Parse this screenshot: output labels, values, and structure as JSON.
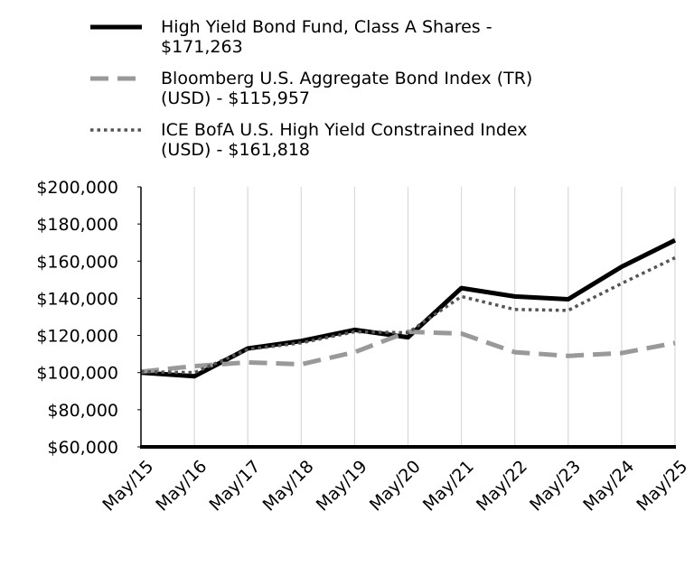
{
  "chart_data": {
    "type": "line",
    "x": [
      "May/15",
      "May/16",
      "May/17",
      "May/18",
      "May/19",
      "May/20",
      "May/21",
      "May/22",
      "May/23",
      "May/24",
      "May/25"
    ],
    "ylim": [
      60000,
      200000
    ],
    "yticks": [
      "$60,000",
      "$80,000",
      "$100,000",
      "$120,000",
      "$140,000",
      "$160,000",
      "$180,000",
      "$200,000"
    ],
    "ytick_values": [
      60000,
      80000,
      100000,
      120000,
      140000,
      160000,
      180000,
      200000
    ],
    "grid": "vertical",
    "legend_position": "top",
    "series": [
      {
        "name": "High Yield Bond Fund, Class A Shares - $171,263",
        "legend_lines": [
          "High Yield Bond Fund, Class A Shares -",
          "$171,263"
        ],
        "style": "solid",
        "color": "#000000",
        "values": [
          100000,
          98000,
          113000,
          117000,
          123000,
          119000,
          145500,
          141000,
          139500,
          157000,
          171263
        ]
      },
      {
        "name": "Bloomberg U.S. Aggregate Bond Index (TR) (USD) - $115,957",
        "legend_lines": [
          "Bloomberg U.S. Aggregate Bond Index (TR)",
          "(USD) - $115,957"
        ],
        "style": "dashed",
        "color": "#999999",
        "values": [
          100500,
          103500,
          105500,
          104500,
          111000,
          122000,
          121000,
          111000,
          109000,
          110500,
          115957
        ]
      },
      {
        "name": "ICE BofA U.S. High Yield Constrained Index (USD) - $161,818",
        "legend_lines": [
          "ICE BofA U.S. High Yield Constrained Index",
          "(USD) - $161,818"
        ],
        "style": "dotted",
        "color": "#555555",
        "values": [
          100500,
          100000,
          112500,
          116000,
          122000,
          121500,
          141000,
          134000,
          133500,
          148000,
          161818
        ]
      }
    ]
  }
}
